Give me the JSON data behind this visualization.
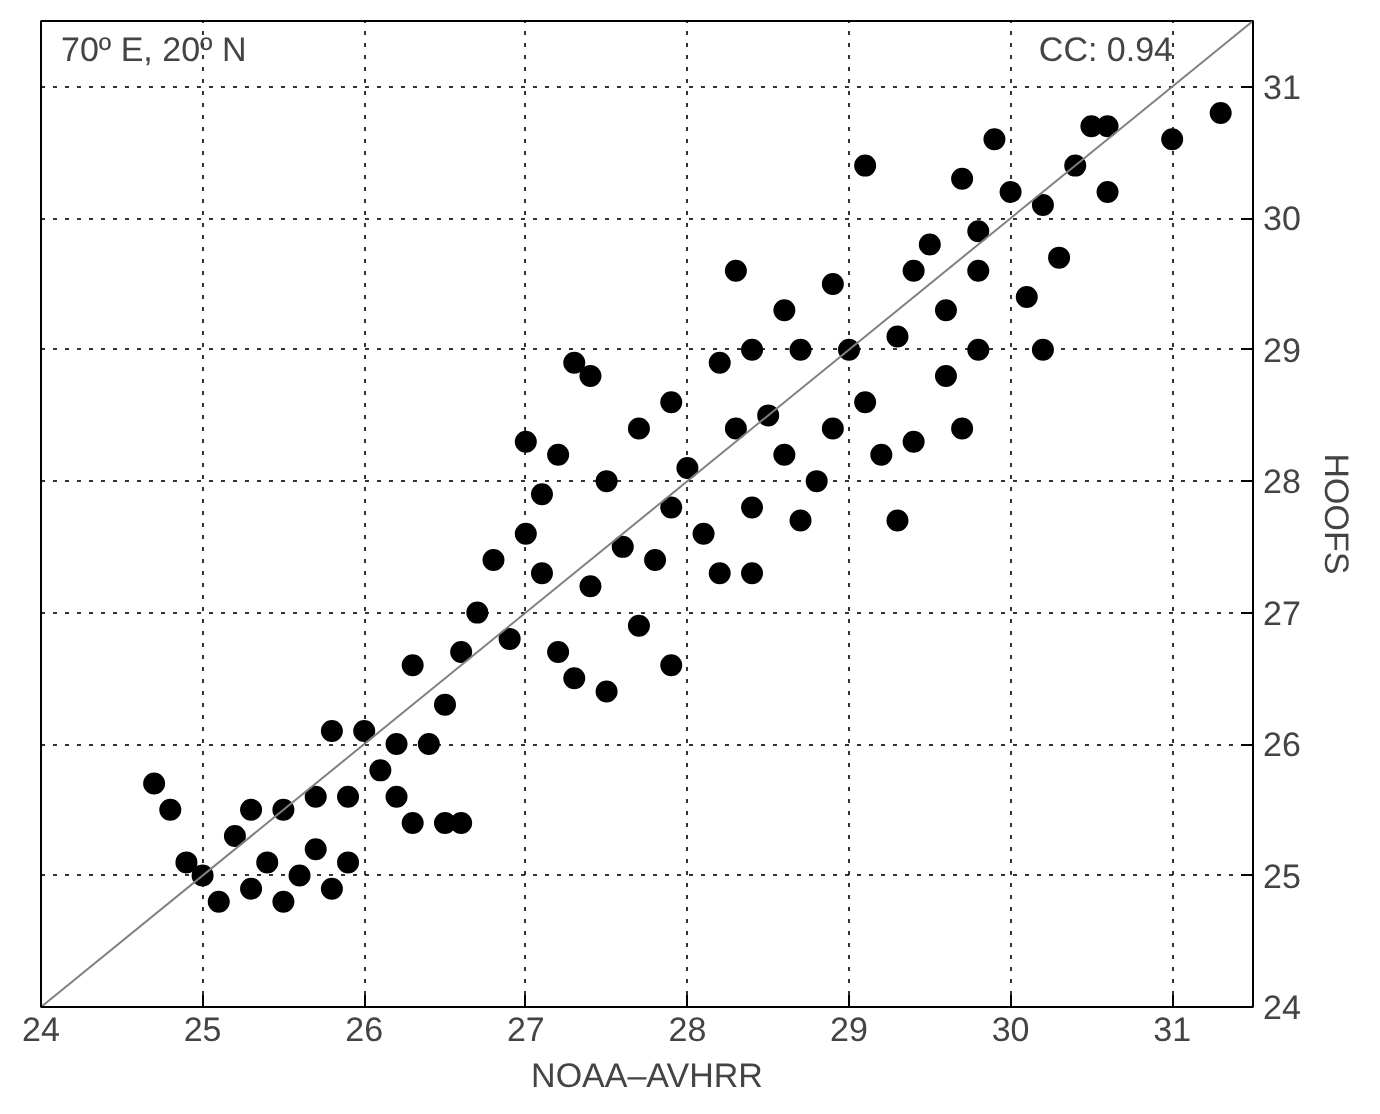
{
  "chart_data": {
    "type": "scatter",
    "xlabel": "NOAA–AVHRR",
    "ylabel": "HOOFS",
    "annotations": [
      "70º E, 20º N",
      "CC: 0.94"
    ],
    "xlim": [
      24,
      31.5
    ],
    "ylim": [
      24,
      31.5
    ],
    "xticks": [
      24,
      25,
      26,
      27,
      28,
      29,
      30,
      31
    ],
    "yticks": [
      24,
      25,
      26,
      27,
      28,
      29,
      30,
      31
    ],
    "grid": true,
    "marker": "circle",
    "series": [
      {
        "color": "#000000",
        "x": [
          24.7,
          24.8,
          24.9,
          25.0,
          25.1,
          25.2,
          25.3,
          25.4,
          25.5,
          25.6,
          25.7,
          25.8,
          25.9,
          25.3,
          25.5,
          25.7,
          25.8,
          26.0,
          26.1,
          26.2,
          26.3,
          26.5,
          26.6,
          26.4,
          26.5,
          26.3,
          26.6,
          26.2,
          25.9,
          26.7,
          26.8,
          26.9,
          27.0,
          27.1,
          27.2,
          27.3,
          27.4,
          27.0,
          27.1,
          27.2,
          27.3,
          27.5,
          27.7,
          27.6,
          27.8,
          27.5,
          27.7,
          27.9,
          27.9,
          28.0,
          28.1,
          28.2,
          28.4,
          28.3,
          28.2,
          28.4,
          28.5,
          28.6,
          28.7,
          28.8,
          28.9,
          28.7,
          28.6,
          28.9,
          29.0,
          29.1,
          29.2,
          29.3,
          29.4,
          29.3,
          29.4,
          29.5,
          29.6,
          29.6,
          29.7,
          29.8,
          29.8,
          29.7,
          29.9,
          30.0,
          30.1,
          30.2,
          30.3,
          30.2,
          30.4,
          30.5,
          30.6,
          30.6,
          31.0,
          31.3,
          29.1,
          28.3,
          29.8,
          27.4,
          27.9,
          28.4
        ],
        "values": [
          25.7,
          25.5,
          25.1,
          25.0,
          24.8,
          25.3,
          24.9,
          25.1,
          24.8,
          25.0,
          25.2,
          24.9,
          25.1,
          25.5,
          25.5,
          25.6,
          26.1,
          26.1,
          25.8,
          25.6,
          25.4,
          25.4,
          25.4,
          26.0,
          26.3,
          26.6,
          26.7,
          26.0,
          25.6,
          27.0,
          27.4,
          26.8,
          27.6,
          27.9,
          28.2,
          28.9,
          28.8,
          28.3,
          27.3,
          26.7,
          26.5,
          26.4,
          26.9,
          27.5,
          27.4,
          28.0,
          28.4,
          28.6,
          27.8,
          28.1,
          27.6,
          27.3,
          27.8,
          28.4,
          28.9,
          29.0,
          28.5,
          28.2,
          27.7,
          28.0,
          28.4,
          29.0,
          29.3,
          29.5,
          29.0,
          28.6,
          28.2,
          27.7,
          28.3,
          29.1,
          29.6,
          29.8,
          29.3,
          28.8,
          28.4,
          29.0,
          29.6,
          30.3,
          30.6,
          30.2,
          29.4,
          29.0,
          29.7,
          30.1,
          30.4,
          30.7,
          30.2,
          30.7,
          30.6,
          30.8,
          30.4,
          29.6,
          29.9,
          27.2,
          26.6,
          27.3
        ]
      },
      {
        "type": "line",
        "marker": "none",
        "color": "#808080",
        "x": [
          24,
          31.5
        ],
        "values": [
          24,
          31.5
        ]
      }
    ]
  }
}
